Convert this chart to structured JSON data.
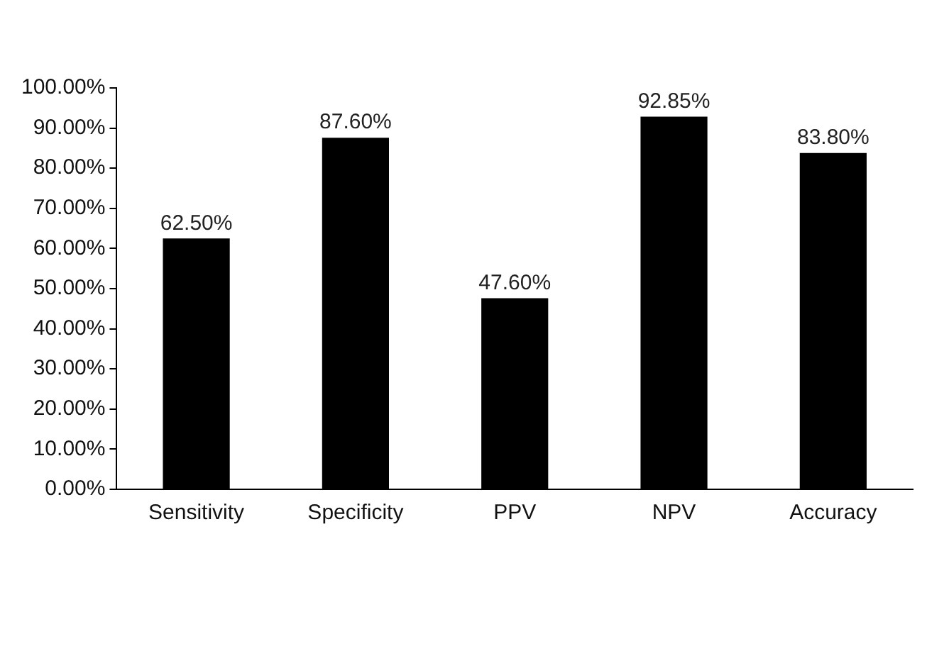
{
  "chart_data": {
    "type": "bar",
    "categories": [
      "Sensitivity",
      "Specificity",
      "PPV",
      "NPV",
      "Accuracy"
    ],
    "values": [
      62.5,
      87.6,
      47.6,
      92.85,
      83.8
    ],
    "value_labels": [
      "62.50%",
      "87.60%",
      "47.60%",
      "92.85%",
      "83.80%"
    ],
    "color": "#000000",
    "ylim": [
      0,
      100
    ],
    "yticks": [
      {
        "value": 0,
        "label": "0.00%"
      },
      {
        "value": 10,
        "label": "10.00%"
      },
      {
        "value": 20,
        "label": "20.00%"
      },
      {
        "value": 30,
        "label": "30.00%"
      },
      {
        "value": 40,
        "label": "40.00%"
      },
      {
        "value": 50,
        "label": "50.00%"
      },
      {
        "value": 60,
        "label": "60.00%"
      },
      {
        "value": 70,
        "label": "70.00%"
      },
      {
        "value": 80,
        "label": "80.00%"
      },
      {
        "value": 90,
        "label": "90.00%"
      },
      {
        "value": 100,
        "label": "100.00%"
      }
    ],
    "grid": false,
    "legend": false
  }
}
